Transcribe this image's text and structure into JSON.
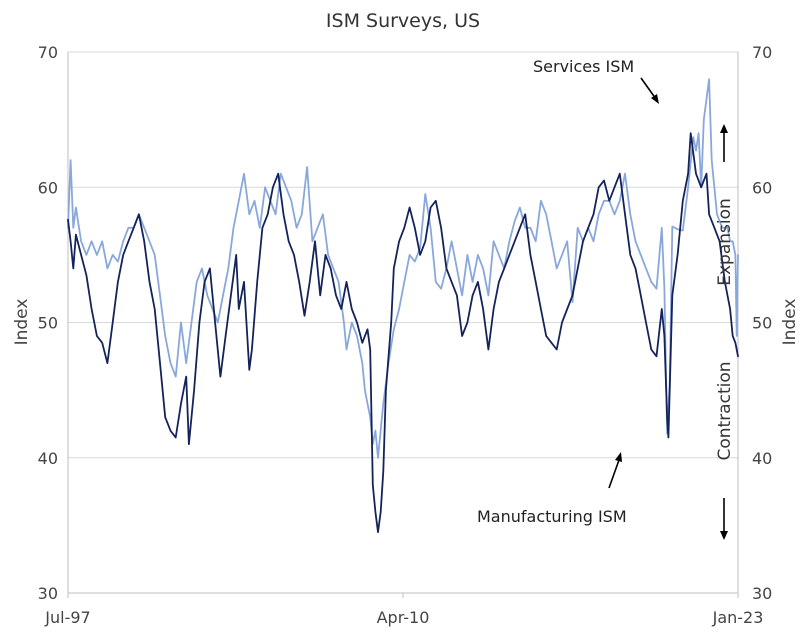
{
  "chart_data": {
    "type": "line",
    "title": "ISM Surveys, US",
    "ylabel_left": "Index",
    "ylabel_right": "Index",
    "ylim": [
      30,
      70
    ],
    "yticks": [
      30,
      40,
      50,
      60,
      70
    ],
    "xlim": [
      1997.5,
      2023.0
    ],
    "xticks": [
      {
        "label": "Jul-97",
        "x": 1997.5
      },
      {
        "label": "Apr-10",
        "x": 2010.25
      },
      {
        "label": "Jan-23",
        "x": 2023.0
      }
    ],
    "grid": true,
    "annotations": {
      "services": "Services ISM",
      "manufacturing": "Manufacturing ISM",
      "expansion": "Expansion",
      "contraction": "Contraction"
    },
    "series": [
      {
        "name": "Manufacturing ISM",
        "color": "#14235a",
        "points": [
          [
            1997.5,
            57.6
          ],
          [
            1997.6,
            56.0
          ],
          [
            1997.7,
            54.0
          ],
          [
            1997.8,
            56.5
          ],
          [
            1998.0,
            55.0
          ],
          [
            1998.2,
            53.5
          ],
          [
            1998.4,
            51.0
          ],
          [
            1998.6,
            49.0
          ],
          [
            1998.8,
            48.5
          ],
          [
            1999.0,
            47.0
          ],
          [
            1999.2,
            50.0
          ],
          [
            1999.4,
            53.0
          ],
          [
            1999.6,
            55.0
          ],
          [
            1999.8,
            56.0
          ],
          [
            2000.0,
            57.0
          ],
          [
            2000.2,
            58.0
          ],
          [
            2000.4,
            56.0
          ],
          [
            2000.6,
            53.0
          ],
          [
            2000.8,
            51.0
          ],
          [
            2001.0,
            47.0
          ],
          [
            2001.2,
            43.0
          ],
          [
            2001.4,
            42.0
          ],
          [
            2001.6,
            41.5
          ],
          [
            2001.8,
            44.0
          ],
          [
            2002.0,
            46.0
          ],
          [
            2002.1,
            41.0
          ],
          [
            2002.3,
            45.0
          ],
          [
            2002.5,
            50.0
          ],
          [
            2002.7,
            53.0
          ],
          [
            2002.9,
            54.0
          ],
          [
            2003.1,
            50.0
          ],
          [
            2003.3,
            46.0
          ],
          [
            2003.5,
            49.0
          ],
          [
            2003.7,
            52.0
          ],
          [
            2003.9,
            55.0
          ],
          [
            2004.0,
            51.0
          ],
          [
            2004.2,
            53.0
          ],
          [
            2004.4,
            46.5
          ],
          [
            2004.5,
            48.0
          ],
          [
            2004.7,
            53.0
          ],
          [
            2004.9,
            57.0
          ],
          [
            2005.1,
            58.0
          ],
          [
            2005.3,
            60.0
          ],
          [
            2005.5,
            61.0
          ],
          [
            2005.7,
            58.0
          ],
          [
            2005.9,
            56.0
          ],
          [
            2006.1,
            55.0
          ],
          [
            2006.3,
            53.0
          ],
          [
            2006.5,
            50.5
          ],
          [
            2006.7,
            53.0
          ],
          [
            2006.9,
            56.0
          ],
          [
            2007.1,
            52.0
          ],
          [
            2007.3,
            55.0
          ],
          [
            2007.5,
            54.0
          ],
          [
            2007.7,
            52.0
          ],
          [
            2007.9,
            51.0
          ],
          [
            2008.1,
            53.0
          ],
          [
            2008.3,
            51.0
          ],
          [
            2008.5,
            50.0
          ],
          [
            2008.7,
            48.5
          ],
          [
            2008.9,
            49.5
          ],
          [
            2009.0,
            48.0
          ],
          [
            2009.1,
            38.0
          ],
          [
            2009.2,
            36.0
          ],
          [
            2009.3,
            34.5
          ],
          [
            2009.4,
            36.0
          ],
          [
            2009.5,
            39.0
          ],
          [
            2009.6,
            45.0
          ],
          [
            2009.8,
            50.0
          ],
          [
            2009.9,
            54.0
          ],
          [
            2010.1,
            56.0
          ],
          [
            2010.3,
            57.0
          ],
          [
            2010.5,
            58.5
          ],
          [
            2010.7,
            57.0
          ],
          [
            2010.9,
            55.0
          ],
          [
            2011.1,
            56.0
          ],
          [
            2011.3,
            58.5
          ],
          [
            2011.5,
            59.0
          ],
          [
            2011.7,
            57.0
          ],
          [
            2011.9,
            54.0
          ],
          [
            2012.1,
            53.0
          ],
          [
            2012.3,
            52.0
          ],
          [
            2012.5,
            49.0
          ],
          [
            2012.7,
            50.0
          ],
          [
            2012.9,
            52.0
          ],
          [
            2013.1,
            53.0
          ],
          [
            2013.3,
            51.0
          ],
          [
            2013.5,
            48.0
          ],
          [
            2013.7,
            51.0
          ],
          [
            2013.9,
            53.0
          ],
          [
            2014.1,
            54.0
          ],
          [
            2014.3,
            55.0
          ],
          [
            2014.5,
            56.0
          ],
          [
            2014.7,
            57.0
          ],
          [
            2014.9,
            58.0
          ],
          [
            2015.1,
            55.0
          ],
          [
            2015.3,
            53.0
          ],
          [
            2015.5,
            51.0
          ],
          [
            2015.7,
            49.0
          ],
          [
            2015.9,
            48.5
          ],
          [
            2016.1,
            48.0
          ],
          [
            2016.3,
            50.0
          ],
          [
            2016.5,
            51.0
          ],
          [
            2016.7,
            52.0
          ],
          [
            2016.9,
            54.0
          ],
          [
            2017.1,
            56.0
          ],
          [
            2017.3,
            57.0
          ],
          [
            2017.5,
            58.0
          ],
          [
            2017.7,
            60.0
          ],
          [
            2017.9,
            60.5
          ],
          [
            2018.1,
            59.0
          ],
          [
            2018.3,
            60.0
          ],
          [
            2018.5,
            61.0
          ],
          [
            2018.7,
            58.0
          ],
          [
            2018.9,
            55.0
          ],
          [
            2019.1,
            54.0
          ],
          [
            2019.3,
            52.0
          ],
          [
            2019.5,
            50.0
          ],
          [
            2019.7,
            48.0
          ],
          [
            2019.9,
            47.5
          ],
          [
            2020.1,
            51.0
          ],
          [
            2020.2,
            49.0
          ],
          [
            2020.3,
            43.0
          ],
          [
            2020.35,
            41.5
          ],
          [
            2020.5,
            52.0
          ],
          [
            2020.7,
            55.0
          ],
          [
            2020.9,
            59.0
          ],
          [
            2021.1,
            61.0
          ],
          [
            2021.2,
            64.0
          ],
          [
            2021.4,
            61.0
          ],
          [
            2021.6,
            60.0
          ],
          [
            2021.8,
            61.0
          ],
          [
            2021.9,
            58.0
          ],
          [
            2022.1,
            57.0
          ],
          [
            2022.3,
            56.0
          ],
          [
            2022.5,
            53.0
          ],
          [
            2022.7,
            51.0
          ],
          [
            2022.8,
            49.0
          ],
          [
            2022.9,
            48.5
          ],
          [
            2023.0,
            47.5
          ]
        ]
      },
      {
        "name": "Services ISM",
        "color": "#8aa7db",
        "points": [
          [
            1997.5,
            57.0
          ],
          [
            1997.6,
            62.0
          ],
          [
            1997.7,
            57.0
          ],
          [
            1997.8,
            58.5
          ],
          [
            1998.0,
            56.0
          ],
          [
            1998.2,
            55.0
          ],
          [
            1998.4,
            56.0
          ],
          [
            1998.6,
            55.0
          ],
          [
            1998.8,
            56.0
          ],
          [
            1999.0,
            54.0
          ],
          [
            1999.2,
            55.0
          ],
          [
            1999.4,
            54.5
          ],
          [
            1999.6,
            56.0
          ],
          [
            1999.8,
            57.0
          ],
          [
            2000.0,
            57.0
          ],
          [
            2000.2,
            58.0
          ],
          [
            2000.4,
            57.0
          ],
          [
            2000.6,
            56.0
          ],
          [
            2000.8,
            55.0
          ],
          [
            2001.0,
            52.0
          ],
          [
            2001.2,
            49.0
          ],
          [
            2001.4,
            47.0
          ],
          [
            2001.6,
            46.0
          ],
          [
            2001.8,
            50.0
          ],
          [
            2002.0,
            47.0
          ],
          [
            2002.2,
            50.0
          ],
          [
            2002.4,
            53.0
          ],
          [
            2002.6,
            54.0
          ],
          [
            2002.8,
            52.0
          ],
          [
            2003.0,
            51.0
          ],
          [
            2003.2,
            50.0
          ],
          [
            2003.4,
            52.0
          ],
          [
            2003.6,
            54.0
          ],
          [
            2003.8,
            57.0
          ],
          [
            2004.0,
            59.0
          ],
          [
            2004.2,
            61.0
          ],
          [
            2004.4,
            58.0
          ],
          [
            2004.6,
            59.0
          ],
          [
            2004.8,
            57.0
          ],
          [
            2005.0,
            60.0
          ],
          [
            2005.2,
            59.0
          ],
          [
            2005.4,
            58.0
          ],
          [
            2005.6,
            61.0
          ],
          [
            2005.8,
            60.0
          ],
          [
            2006.0,
            59.0
          ],
          [
            2006.2,
            57.0
          ],
          [
            2006.4,
            58.0
          ],
          [
            2006.6,
            61.5
          ],
          [
            2006.8,
            56.0
          ],
          [
            2007.0,
            57.0
          ],
          [
            2007.2,
            58.0
          ],
          [
            2007.4,
            55.0
          ],
          [
            2007.6,
            54.0
          ],
          [
            2007.8,
            53.0
          ],
          [
            2008.0,
            50.0
          ],
          [
            2008.1,
            48.0
          ],
          [
            2008.3,
            50.0
          ],
          [
            2008.5,
            49.0
          ],
          [
            2008.7,
            47.0
          ],
          [
            2008.8,
            45.0
          ],
          [
            2008.9,
            44.0
          ],
          [
            2009.0,
            43.0
          ],
          [
            2009.1,
            41.0
          ],
          [
            2009.2,
            42.0
          ],
          [
            2009.3,
            40.0
          ],
          [
            2009.5,
            44.0
          ],
          [
            2009.7,
            47.0
          ],
          [
            2009.9,
            49.5
          ],
          [
            2010.1,
            51.0
          ],
          [
            2010.3,
            53.0
          ],
          [
            2010.5,
            55.0
          ],
          [
            2010.7,
            54.5
          ],
          [
            2010.9,
            55.5
          ],
          [
            2011.1,
            59.5
          ],
          [
            2011.3,
            57.0
          ],
          [
            2011.5,
            53.0
          ],
          [
            2011.7,
            52.5
          ],
          [
            2011.9,
            54.0
          ],
          [
            2012.1,
            56.0
          ],
          [
            2012.3,
            54.0
          ],
          [
            2012.5,
            52.0
          ],
          [
            2012.7,
            55.0
          ],
          [
            2012.9,
            53.0
          ],
          [
            2013.1,
            55.0
          ],
          [
            2013.3,
            54.0
          ],
          [
            2013.5,
            52.0
          ],
          [
            2013.7,
            56.0
          ],
          [
            2013.9,
            55.0
          ],
          [
            2014.1,
            54.0
          ],
          [
            2014.3,
            56.0
          ],
          [
            2014.5,
            57.5
          ],
          [
            2014.7,
            58.5
          ],
          [
            2014.9,
            57.0
          ],
          [
            2015.1,
            57.0
          ],
          [
            2015.3,
            56.0
          ],
          [
            2015.5,
            59.0
          ],
          [
            2015.7,
            58.0
          ],
          [
            2015.9,
            56.0
          ],
          [
            2016.1,
            54.0
          ],
          [
            2016.3,
            55.0
          ],
          [
            2016.5,
            56.0
          ],
          [
            2016.7,
            51.5
          ],
          [
            2016.9,
            57.0
          ],
          [
            2017.1,
            56.0
          ],
          [
            2017.3,
            57.0
          ],
          [
            2017.5,
            56.0
          ],
          [
            2017.7,
            58.0
          ],
          [
            2017.9,
            59.0
          ],
          [
            2018.1,
            59.0
          ],
          [
            2018.3,
            58.0
          ],
          [
            2018.5,
            59.0
          ],
          [
            2018.7,
            61.0
          ],
          [
            2018.9,
            58.0
          ],
          [
            2019.1,
            56.0
          ],
          [
            2019.3,
            55.0
          ],
          [
            2019.5,
            54.0
          ],
          [
            2019.7,
            53.0
          ],
          [
            2019.9,
            52.5
          ],
          [
            2020.1,
            57.0
          ],
          [
            2020.2,
            52.5
          ],
          [
            2020.3,
            41.8
          ],
          [
            2020.4,
            45.4
          ],
          [
            2020.5,
            57.1
          ],
          [
            2020.7,
            56.9
          ],
          [
            2020.9,
            56.8
          ],
          [
            2021.1,
            60.0
          ],
          [
            2021.3,
            63.7
          ],
          [
            2021.4,
            62.7
          ],
          [
            2021.5,
            64.0
          ],
          [
            2021.6,
            60.0
          ],
          [
            2021.7,
            65.0
          ],
          [
            2021.9,
            68.0
          ],
          [
            2022.0,
            62.0
          ],
          [
            2022.2,
            58.0
          ],
          [
            2022.4,
            57.0
          ],
          [
            2022.6,
            57.0
          ],
          [
            2022.7,
            56.0
          ],
          [
            2022.8,
            56.0
          ],
          [
            2022.9,
            55.0
          ],
          [
            2022.95,
            49.0
          ],
          [
            2023.0,
            55.0
          ]
        ]
      }
    ]
  }
}
